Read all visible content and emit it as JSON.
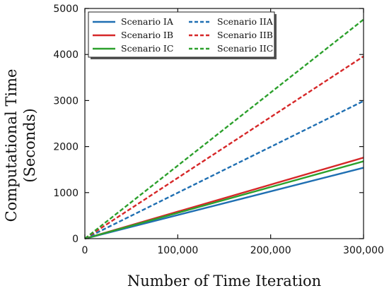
{
  "chart_data": {
    "type": "line",
    "title": "",
    "xlabel": "Number of Time Iteration",
    "ylabel_line1": "Computational Time",
    "ylabel_line2": "(Seconds)",
    "xlim": [
      0,
      300000
    ],
    "ylim": [
      0,
      5000
    ],
    "x_ticks": [
      0,
      100000,
      200000,
      300000
    ],
    "x_tick_labels": [
      "0",
      "100,000",
      "200,000",
      "300,000"
    ],
    "y_ticks": [
      0,
      1000,
      2000,
      3000,
      4000,
      5000
    ],
    "y_tick_labels": [
      "0",
      "1000",
      "2000",
      "3000",
      "4000",
      "5000"
    ],
    "grid": false,
    "legend_position": "top-left",
    "legend_columns": 2,
    "series": [
      {
        "name": "Scenario IA",
        "color": "#1f6fb2",
        "dash": "solid",
        "x": [
          0,
          300000
        ],
        "y": [
          0,
          1540
        ]
      },
      {
        "name": "Scenario IB",
        "color": "#d62728",
        "dash": "solid",
        "x": [
          0,
          300000
        ],
        "y": [
          0,
          1760
        ]
      },
      {
        "name": "Scenario IC",
        "color": "#2ca02c",
        "dash": "solid",
        "x": [
          0,
          300000
        ],
        "y": [
          0,
          1680
        ]
      },
      {
        "name": "Scenario IIA",
        "color": "#1f6fb2",
        "dash": "dashed",
        "x": [
          0,
          300000
        ],
        "y": [
          0,
          2990
        ]
      },
      {
        "name": "Scenario IIB",
        "color": "#d62728",
        "dash": "dashed",
        "x": [
          0,
          300000
        ],
        "y": [
          0,
          3960
        ]
      },
      {
        "name": "Scenario IIC",
        "color": "#2ca02c",
        "dash": "dashed",
        "x": [
          0,
          300000
        ],
        "y": [
          0,
          4760
        ]
      }
    ]
  }
}
